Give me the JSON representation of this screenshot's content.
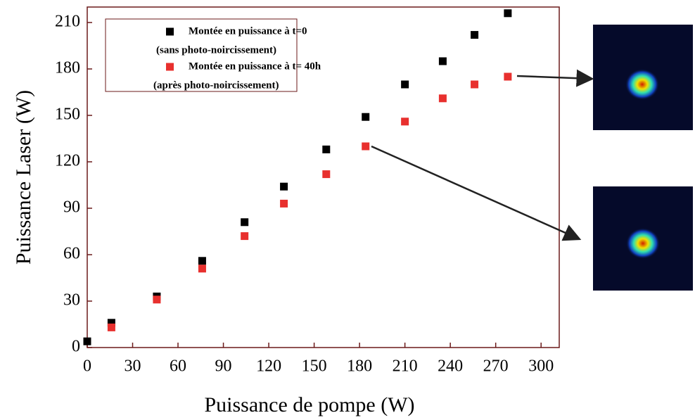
{
  "chart_data": {
    "type": "scatter",
    "xlabel": "Puissance de pompe (W)",
    "ylabel": "Puissance Laser (W)",
    "xlim": [
      0,
      312
    ],
    "ylim": [
      0,
      220
    ],
    "xticks": [
      0,
      30,
      60,
      90,
      120,
      150,
      180,
      210,
      240,
      270,
      300
    ],
    "yticks": [
      0,
      30,
      60,
      90,
      120,
      150,
      180,
      210
    ],
    "series": [
      {
        "name": "Montée en puissance à t=0",
        "note": "(sans photo-noircissement)",
        "color": "#000000",
        "x": [
          0,
          16,
          46,
          76,
          104,
          130,
          158,
          184,
          210,
          235,
          256,
          278
        ],
        "values": [
          4,
          16,
          33,
          56,
          81,
          104,
          128,
          149,
          170,
          185,
          202,
          216
        ]
      },
      {
        "name": "Montée en puissance à t= 40h",
        "note": "(après photo-noircissement)",
        "color": "#e8302e",
        "x": [
          16,
          46,
          76,
          104,
          130,
          158,
          184,
          210,
          235,
          256,
          278
        ],
        "values": [
          13,
          31,
          51,
          72,
          93,
          112,
          130,
          146,
          161,
          170,
          175
        ]
      }
    ]
  }
}
